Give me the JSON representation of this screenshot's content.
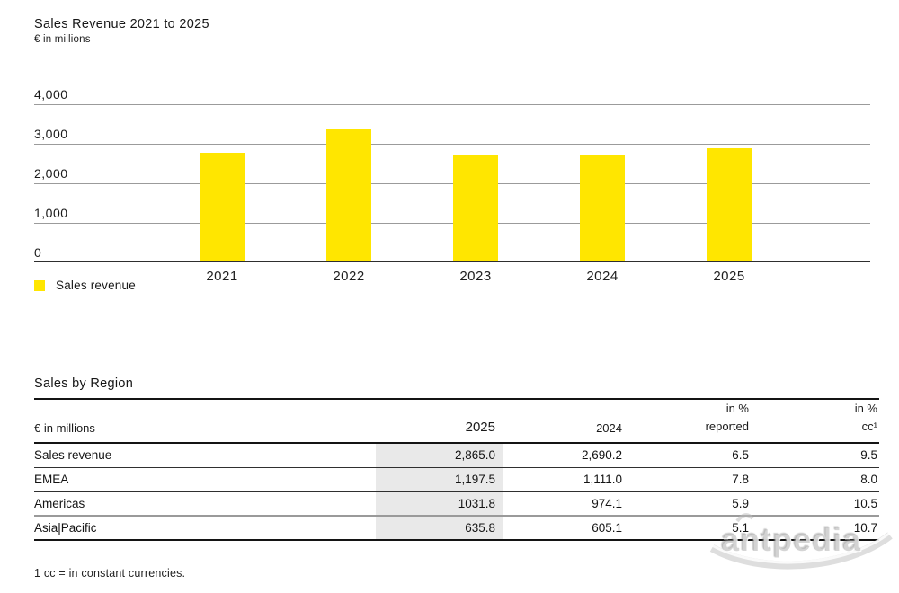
{
  "colors": {
    "bar_yellow": "#FFE600",
    "grid_gray": "#9B9B9B",
    "axis_dark": "#2E2E2E",
    "highlight_gray": "#E9E9E9",
    "watermark_gray": "#C0C0C0"
  },
  "chart_data": [
    {
      "type": "bar",
      "title": "Sales Revenue 2021 to 2025",
      "subtitle": "€ in millions",
      "categories": [
        "2021",
        "2022",
        "2023",
        "2024",
        "2025"
      ],
      "values": [
        2740,
        3345,
        2680,
        2690.2,
        2865.0
      ],
      "xlabel": "",
      "ylabel": "€ in millions",
      "ylim": [
        0,
        4000
      ],
      "yticks": [
        0,
        1000,
        2000,
        3000,
        4000
      ],
      "ytick_labels": [
        "0",
        "1,000",
        "2,000",
        "3,000",
        "4,000"
      ],
      "grid": true,
      "bar_color": "#FFE600",
      "legend": [
        {
          "label": "Sales revenue",
          "color": "#FFE600"
        }
      ],
      "legend_position": "bottom-left"
    },
    {
      "type": "table",
      "title": "Sales by Region",
      "columns": [
        {
          "id": "label",
          "lines": [
            "€ in millions"
          ],
          "align": "left"
        },
        {
          "id": "y2025",
          "lines": [
            "2025"
          ],
          "align": "right",
          "highlight": true
        },
        {
          "id": "y2024",
          "lines": [
            "2024"
          ],
          "align": "right"
        },
        {
          "id": "pct_reported",
          "lines": [
            "in %",
            "reported"
          ],
          "align": "right"
        },
        {
          "id": "pct_cc",
          "lines": [
            "in %",
            "cc¹"
          ],
          "align": "right"
        }
      ],
      "rows": [
        {
          "label": "Sales revenue",
          "y2025": "2,865.0",
          "y2024": "2,690.2",
          "pct_reported": "6.5",
          "pct_cc": "9.5"
        },
        {
          "label": "EMEA",
          "y2025": "1,197.5",
          "y2024": "1,111.0",
          "pct_reported": "7.8",
          "pct_cc": "8.0"
        },
        {
          "label": "Americas",
          "y2025": "1031.8",
          "y2024": "974.1",
          "pct_reported": "5.9",
          "pct_cc": "10.5"
        },
        {
          "label": "Asia|Pacific",
          "y2025": "635.8",
          "y2024": "605.1",
          "pct_reported": "5.1",
          "pct_cc": "10.7"
        }
      ],
      "footnote": "1 cc = in constant currencies."
    }
  ],
  "watermark": {
    "text": "antpedia"
  }
}
